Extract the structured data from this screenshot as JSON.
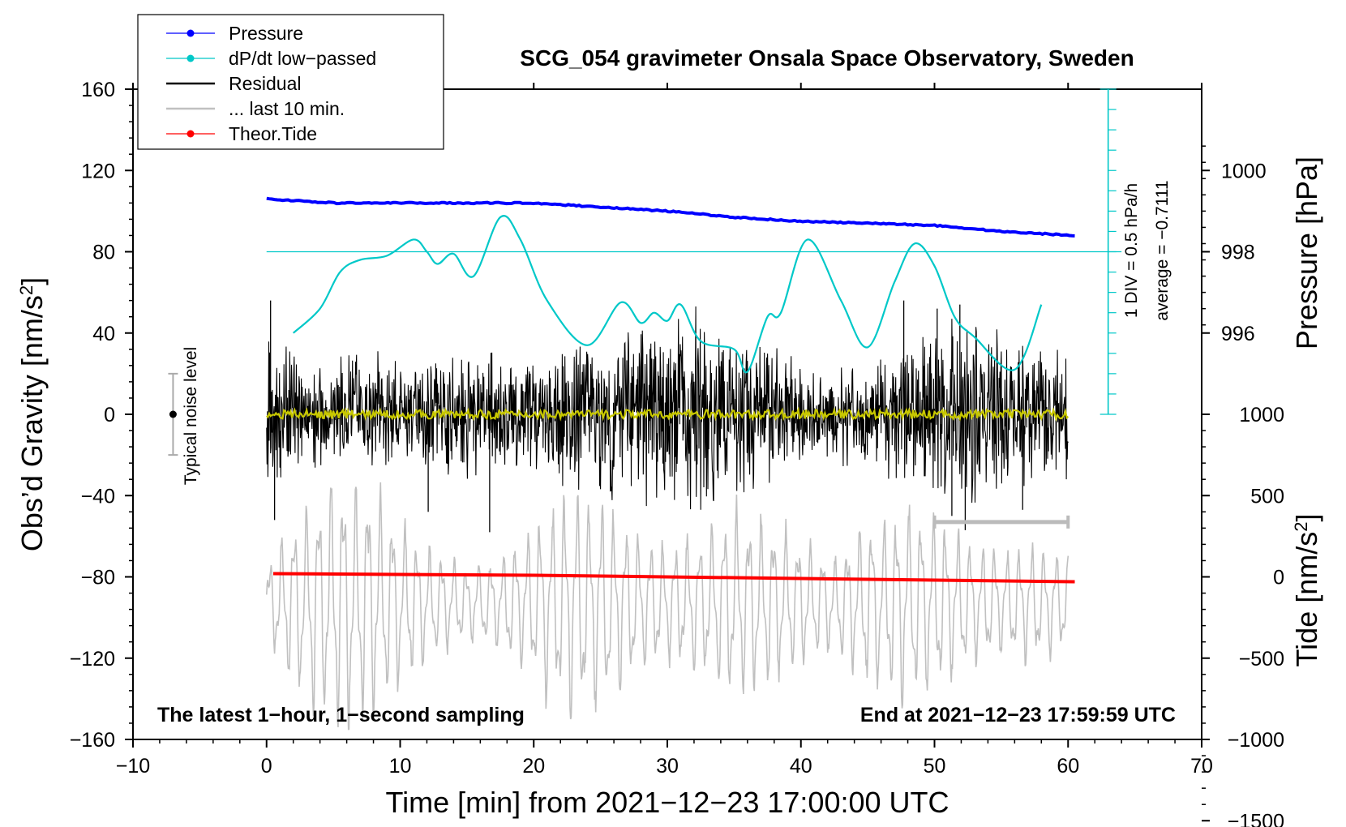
{
  "chart_data": {
    "type": "line",
    "title": "SCG_054 gravimeter Onsala Space Observatory, Sweden",
    "xlabel": "Time [min] from 2021−12−23 17:00:00 UTC",
    "ylabel_left": "Obs’d Gravity [nm/s",
    "ylabel_left_sup": "2",
    "ylabel_left_close": "]",
    "ylabel_right_top": "Pressure [hPa]",
    "ylabel_right_bottom": "Tide [nm/s",
    "ylabel_right_bottom_sup": "2",
    "ylabel_right_bottom_close": "]",
    "xlim": [
      -10,
      70
    ],
    "ylim_left": [
      -160,
      160
    ],
    "x_ticks": [
      -10,
      0,
      10,
      20,
      30,
      40,
      50,
      60,
      70
    ],
    "x_tick_labels": [
      "−10",
      "0",
      "10",
      "20",
      "30",
      "40",
      "50",
      "60",
      "70"
    ],
    "y_left_ticks": [
      160,
      120,
      80,
      40,
      0,
      -40,
      -80,
      -120,
      -160
    ],
    "y_left_tick_labels": [
      "160",
      "120",
      "80",
      "40",
      "0",
      "−40",
      "−80",
      "−120",
      "−160"
    ],
    "pressure_axis": {
      "ticks": [
        1000,
        998,
        996
      ],
      "tick_labels": [
        "1000",
        "998",
        "996"
      ],
      "gravity_at_998": 80,
      "gravity_per_hPa": 20
    },
    "tide_axis": {
      "ticks": [
        1000,
        500,
        0,
        -500,
        -1000,
        -1500
      ],
      "tick_labels": [
        "1000",
        "500",
        "0",
        "−500",
        "−1000",
        "−1500"
      ],
      "gravity_at_0": -80,
      "gravity_per_nms2": 0.08
    },
    "legend": [
      {
        "label": "Pressure",
        "color": "#0000ff",
        "marker": true
      },
      {
        "label": "dP/dt low−passed",
        "color": "#00c8c8",
        "marker": true
      },
      {
        "label": "Residual",
        "color": "#000000",
        "marker": false
      },
      {
        "label": "... last 10 min.",
        "color": "#c0c0c0",
        "marker": false
      },
      {
        "label": "Theor.Tide",
        "color": "#ff0000",
        "marker": true
      }
    ],
    "legend_position": "top-left",
    "series": [
      {
        "name": "Pressure",
        "axis": "pressure",
        "color": "#0000ff",
        "x": [
          0,
          5,
          10,
          15,
          20,
          25,
          30,
          35,
          40,
          45,
          50,
          55,
          60.5
        ],
        "values": [
          999.3,
          999.2,
          999.2,
          999.2,
          999.2,
          999.1,
          999.0,
          998.85,
          998.75,
          998.7,
          998.65,
          998.5,
          998.4
        ]
      },
      {
        "name": "dP/dt low−passed",
        "axis": "gravity",
        "color": "#00c8c8",
        "reference_line": 80,
        "x": [
          2,
          4,
          5.5,
          7,
          9,
          11,
          12,
          12.8,
          14,
          15.5,
          17.5,
          19,
          21,
          24,
          26.5,
          28,
          29,
          30,
          31,
          32.5,
          35,
          36,
          37.5,
          38.5,
          40.5,
          43,
          45,
          47,
          48.5,
          50,
          51.5,
          53,
          56,
          58
        ],
        "values": [
          40,
          52,
          70,
          76,
          78,
          86,
          80,
          74,
          79,
          68,
          97,
          86,
          56,
          34,
          55,
          45,
          50,
          46,
          54,
          36,
          32,
          21,
          48,
          50,
          86,
          56,
          33,
          65,
          84,
          73,
          48,
          38,
          22,
          54
        ]
      },
      {
        "name": "Residual",
        "axis": "gravity",
        "color": "#000000",
        "x_range": [
          0,
          60
        ],
        "envelope_values": [
          40,
          34,
          30,
          38,
          28,
          36,
          32,
          40,
          30,
          42,
          48,
          52,
          58,
          46,
          42,
          30,
          26,
          28,
          34,
          48,
          56,
          50,
          38,
          34
        ],
        "spikes": [
          {
            "x": 0.3,
            "value": 56
          },
          {
            "x": 0.6,
            "value": -52
          },
          {
            "x": 12.1,
            "value": -48
          },
          {
            "x": 16.7,
            "value": -58
          },
          {
            "x": 47.7,
            "value": 56
          },
          {
            "x": 50.2,
            "value": 52
          },
          {
            "x": 51.3,
            "value": -50
          },
          {
            "x": 51.9,
            "value": 54
          },
          {
            "x": 52.3,
            "value": -57
          },
          {
            "x": 56.6,
            "value": -47
          }
        ]
      },
      {
        "name": "Residual smoothed",
        "axis": "gravity",
        "color": "#c8c800",
        "x_range": [
          0,
          60
        ],
        "level": 0
      },
      {
        "name": "... last 10 min.",
        "axis": "gravity",
        "color": "#c0c0c0",
        "x_range": [
          0,
          60
        ],
        "center": -93,
        "amplitude_values": [
          18,
          45,
          60,
          58,
          40,
          25,
          18,
          22,
          38,
          52,
          48,
          35,
          28,
          32,
          45,
          40,
          30,
          22,
          38,
          46,
          42,
          30,
          25,
          28,
          22
        ]
      },
      {
        "name": "Theor.Tide",
        "axis": "tide",
        "color": "#ff0000",
        "x": [
          0.5,
          20,
          40,
          60.5
        ],
        "values": [
          20,
          10,
          -10,
          -30
        ]
      }
    ],
    "noise_indicator": {
      "label": "Typical noise level",
      "x": -7,
      "center": 0,
      "range": [
        -20,
        20
      ]
    },
    "last_10_min_marker": {
      "x_range": [
        50,
        60
      ],
      "level": -53
    },
    "annotation_left": "The latest 1−hour, 1−second sampling",
    "annotation_right": "End at 2021−12−23 17:59:59 UTC",
    "dpdt_scale": {
      "x": 63,
      "range": [
        0,
        160
      ],
      "label_scale": "1 DIV = 0.5 hPa/h",
      "label_average": "average = −0.7111"
    }
  }
}
